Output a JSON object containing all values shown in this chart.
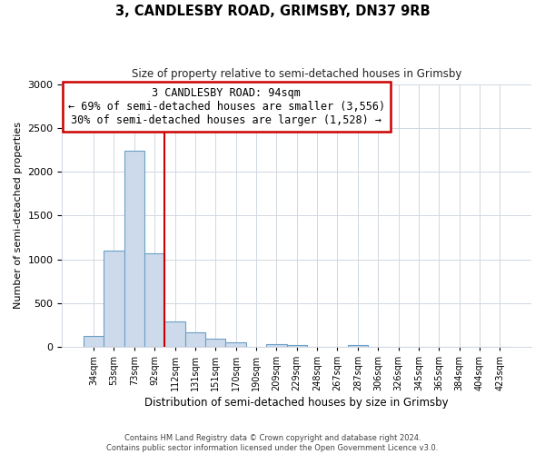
{
  "title": "3, CANDLESBY ROAD, GRIMSBY, DN37 9RB",
  "subtitle": "Size of property relative to semi-detached houses in Grimsby",
  "xlabel": "Distribution of semi-detached houses by size in Grimsby",
  "ylabel": "Number of semi-detached properties",
  "bar_color": "#cddaeb",
  "bar_edge_color": "#6aa0c7",
  "bin_labels": [
    "34sqm",
    "53sqm",
    "73sqm",
    "92sqm",
    "112sqm",
    "131sqm",
    "151sqm",
    "170sqm",
    "190sqm",
    "209sqm",
    "229sqm",
    "248sqm",
    "267sqm",
    "287sqm",
    "306sqm",
    "326sqm",
    "345sqm",
    "365sqm",
    "384sqm",
    "404sqm",
    "423sqm"
  ],
  "bar_heights": [
    120,
    1100,
    2240,
    1070,
    290,
    160,
    90,
    50,
    0,
    30,
    20,
    0,
    0,
    15,
    0,
    0,
    0,
    0,
    0,
    0,
    0
  ],
  "ylim": [
    0,
    3000
  ],
  "yticks": [
    0,
    500,
    1000,
    1500,
    2000,
    2500,
    3000
  ],
  "property_line_bin_index": 3,
  "property_line_color": "#cc0000",
  "annotation_line1": "3 CANDLESBY ROAD: 94sqm",
  "annotation_line2": "← 69% of semi-detached houses are smaller (3,556)",
  "annotation_line3": "30% of semi-detached houses are larger (1,528) →",
  "annotation_box_color": "#ffffff",
  "annotation_box_edge_color": "#cc0000",
  "footer_line1": "Contains HM Land Registry data © Crown copyright and database right 2024.",
  "footer_line2": "Contains public sector information licensed under the Open Government Licence v3.0.",
  "background_color": "#ffffff",
  "grid_color": "#d0d8e0"
}
